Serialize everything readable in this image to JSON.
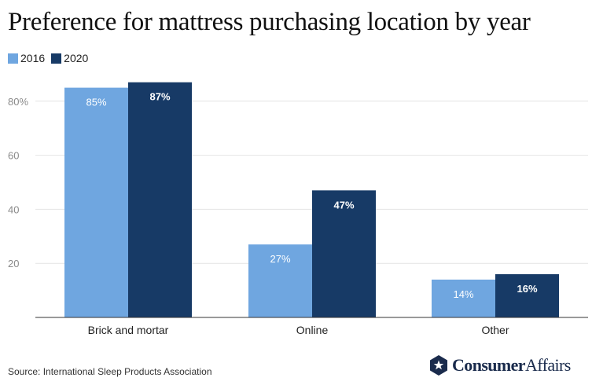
{
  "title": "Preference for mattress purchasing location by year",
  "source": "Source: International Sleep Products Association",
  "brand": {
    "name_bold": "Consumer",
    "name_regular": "Affairs",
    "logo_icon": "star-shield-icon",
    "color": "#1a2b4c"
  },
  "colors": {
    "series_2016": "#6fa6e0",
    "series_2020": "#173a66"
  },
  "chart_data": {
    "type": "bar",
    "categories": [
      "Brick and mortar",
      "Online",
      "Other"
    ],
    "series": [
      {
        "name": "2016",
        "values": [
          85,
          27,
          14
        ],
        "labels": [
          "85%",
          "27%",
          "14%"
        ]
      },
      {
        "name": "2020",
        "values": [
          87,
          47,
          16
        ],
        "labels": [
          "87%",
          "47%",
          "16%"
        ]
      }
    ],
    "yticks": [
      {
        "value": 20,
        "label": "20"
      },
      {
        "value": 40,
        "label": "40"
      },
      {
        "value": 60,
        "label": "60"
      },
      {
        "value": 80,
        "label": "80%"
      }
    ],
    "ylim": [
      0,
      100
    ],
    "grid": true,
    "legend": "top-left"
  }
}
